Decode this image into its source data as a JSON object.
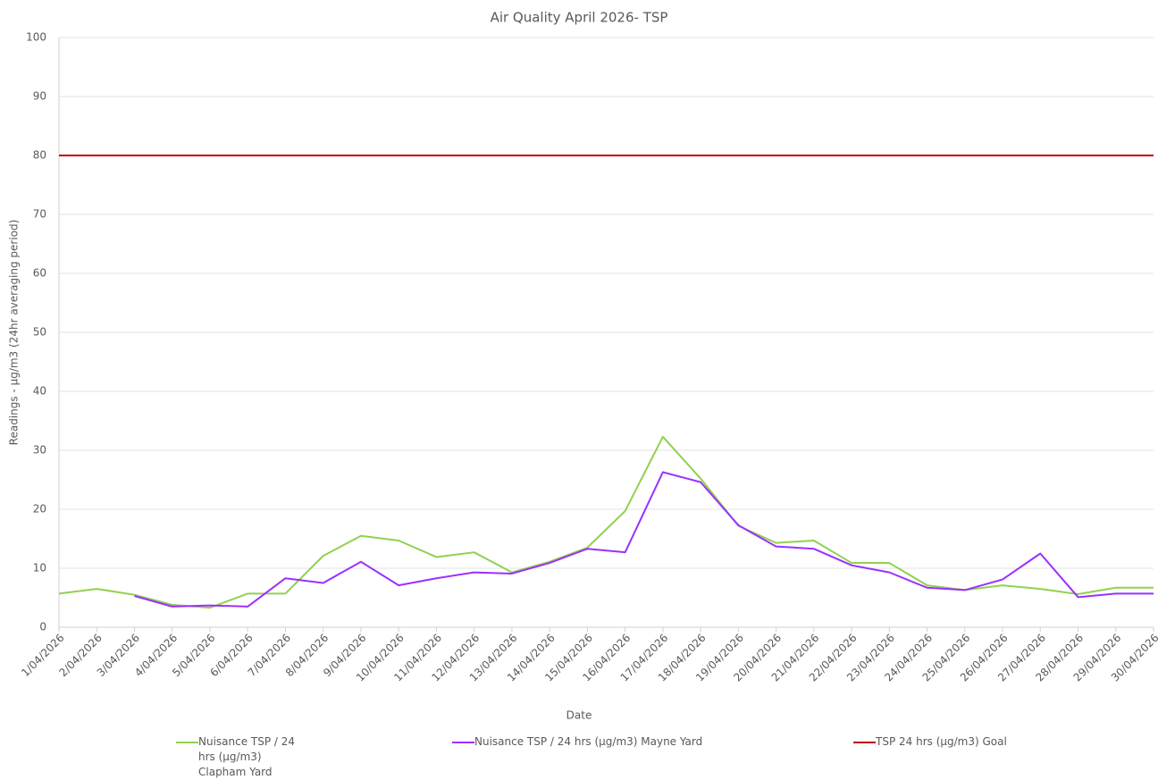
{
  "chart_data": {
    "type": "line",
    "title": "Air Quality April 2026- TSP",
    "x_label": "Date",
    "y_label": "Readings - µg/m3 (24hr averaging period)",
    "categories": [
      "1/04/2026",
      "2/04/2026",
      "3/04/2026",
      "4/04/2026",
      "5/04/2026",
      "6/04/2026",
      "7/04/2026",
      "8/04/2026",
      "9/04/2026",
      "10/04/2026",
      "11/04/2026",
      "12/04/2026",
      "13/04/2026",
      "14/04/2026",
      "15/04/2026",
      "16/04/2026",
      "17/04/2026",
      "18/04/2026",
      "19/04/2026",
      "20/04/2026",
      "21/04/2026",
      "22/04/2026",
      "23/04/2026",
      "24/04/2026",
      "25/04/2026",
      "26/04/2026",
      "27/04/2026",
      "28/04/2026",
      "29/04/2026",
      "30/04/2026"
    ],
    "series": [
      {
        "name": "Nuisance TSP / 24 hrs (µg/m3) Clapham Yard",
        "color": "#92d050",
        "values": [
          5.7,
          6.5,
          5.5,
          3.8,
          3.3,
          5.7,
          5.7,
          12.1,
          15.5,
          14.7,
          11.9,
          12.7,
          9.3,
          11.1,
          13.5,
          19.7,
          32.3,
          25.2,
          17.2,
          14.3,
          14.7,
          10.9,
          10.9,
          7.1,
          6.3,
          7.1,
          6.5,
          5.6,
          6.7,
          6.7
        ]
      },
      {
        "name": "Nuisance TSP / 24 hrs (µg/m3) Mayne Yard",
        "color": "#9b30ff",
        "values": [
          null,
          null,
          5.3,
          3.5,
          3.7,
          3.5,
          8.3,
          7.5,
          11.1,
          7.1,
          8.3,
          9.3,
          9.1,
          10.9,
          13.3,
          12.7,
          26.3,
          24.6,
          17.3,
          13.7,
          13.3,
          10.5,
          9.3,
          6.7,
          6.3,
          8.1,
          12.5,
          5.1,
          5.7,
          5.7
        ]
      },
      {
        "name": "TSP 24 hrs (µg/m3) Goal",
        "color": "#c00000",
        "values": [
          80,
          80,
          80,
          80,
          80,
          80,
          80,
          80,
          80,
          80,
          80,
          80,
          80,
          80,
          80,
          80,
          80,
          80,
          80,
          80,
          80,
          80,
          80,
          80,
          80,
          80,
          80,
          80,
          80,
          80
        ]
      }
    ],
    "ylim": [
      0,
      100
    ],
    "yticks": [
      0,
      10,
      20,
      30,
      40,
      50,
      60,
      70,
      80,
      90,
      100
    ],
    "grid": true,
    "legend": "bottom"
  }
}
